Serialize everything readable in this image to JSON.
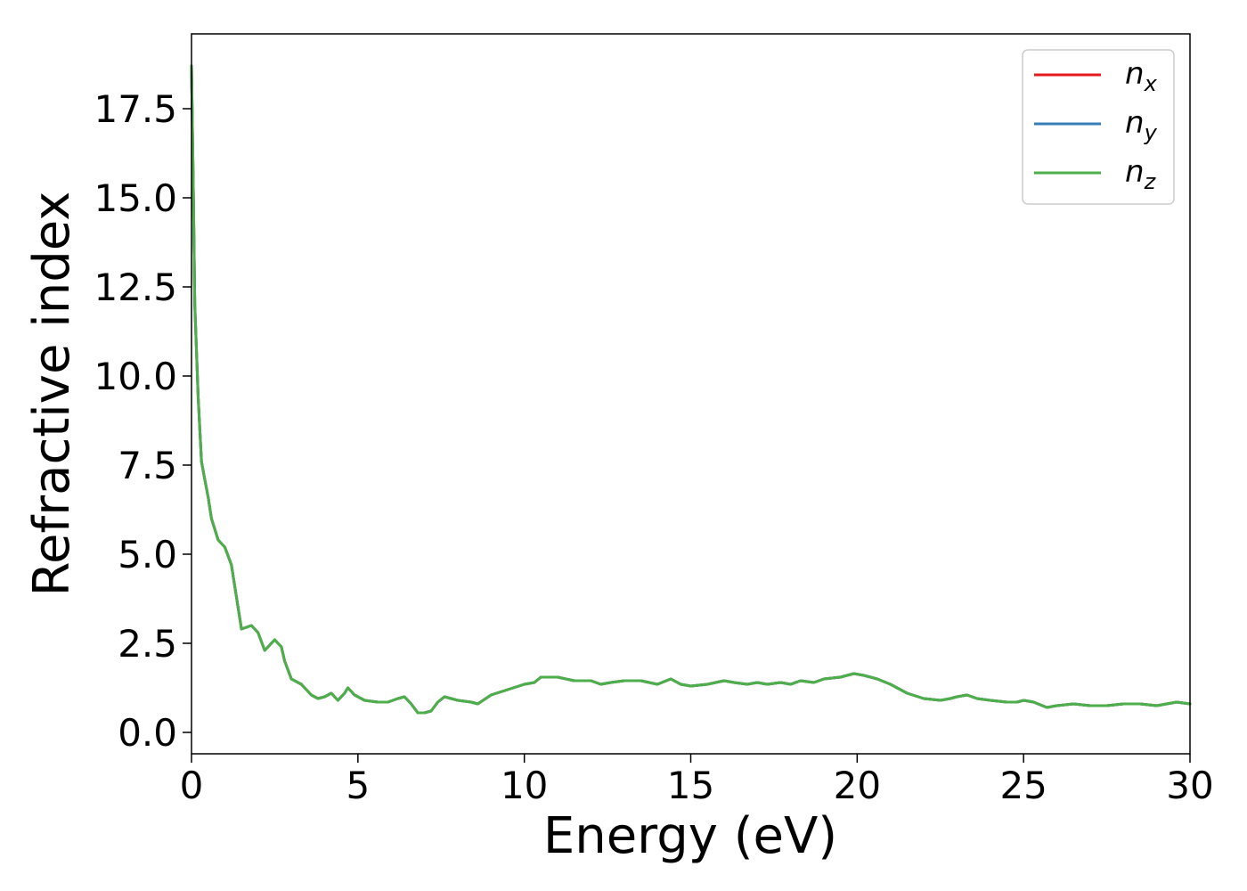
{
  "chart_data": {
    "type": "line",
    "xlabel": "Energy (eV)",
    "ylabel": "Refractive index",
    "xlim": [
      0,
      30
    ],
    "ylim": [
      -0.6,
      19.6
    ],
    "xticks": [
      0,
      5,
      10,
      15,
      20,
      25,
      30
    ],
    "xtick_labels": [
      "0",
      "5",
      "10",
      "15",
      "20",
      "25",
      "30"
    ],
    "yticks": [
      0.0,
      2.5,
      5.0,
      7.5,
      10.0,
      12.5,
      15.0,
      17.5
    ],
    "ytick_labels": [
      "0.0",
      "2.5",
      "5.0",
      "7.5",
      "10.0",
      "12.5",
      "15.0",
      "17.5"
    ],
    "grid": false,
    "legend_position": "top-right",
    "x": [
      0.0,
      0.05,
      0.1,
      0.2,
      0.3,
      0.4,
      0.5,
      0.6,
      0.8,
      1.0,
      1.2,
      1.5,
      1.8,
      2.0,
      2.2,
      2.3,
      2.5,
      2.7,
      2.8,
      3.0,
      3.3,
      3.6,
      3.8,
      4.0,
      4.2,
      4.4,
      4.6,
      4.7,
      4.9,
      5.2,
      5.6,
      5.9,
      6.2,
      6.4,
      6.6,
      6.8,
      7.0,
      7.2,
      7.4,
      7.6,
      7.8,
      8.0,
      8.4,
      8.6,
      9.0,
      9.5,
      10.0,
      10.3,
      10.5,
      11.0,
      11.5,
      12.0,
      12.3,
      12.6,
      13.0,
      13.5,
      14.0,
      14.4,
      14.7,
      15.0,
      15.5,
      16.0,
      16.3,
      16.7,
      17.0,
      17.3,
      17.7,
      18.0,
      18.3,
      18.7,
      19.0,
      19.5,
      19.9,
      20.2,
      20.6,
      21.0,
      21.5,
      22.0,
      22.5,
      22.8,
      23.0,
      23.3,
      23.6,
      24.0,
      24.5,
      24.8,
      25.0,
      25.3,
      25.7,
      26.0,
      26.5,
      27.0,
      27.5,
      28.0,
      28.5,
      29.0,
      29.3,
      29.6,
      30.0
    ],
    "series": [
      {
        "name": "x",
        "color": "#e41a1c",
        "values": [
          18.7,
          15.5,
          12.0,
          9.4,
          7.6,
          7.1,
          6.6,
          6.0,
          5.4,
          5.2,
          4.7,
          2.9,
          3.0,
          2.8,
          2.3,
          2.4,
          2.6,
          2.4,
          2.0,
          1.5,
          1.35,
          1.05,
          0.95,
          1.0,
          1.1,
          0.9,
          1.1,
          1.25,
          1.05,
          0.9,
          0.85,
          0.85,
          0.95,
          1.0,
          0.8,
          0.55,
          0.55,
          0.6,
          0.85,
          1.0,
          0.95,
          0.9,
          0.85,
          0.8,
          1.05,
          1.2,
          1.35,
          1.4,
          1.55,
          1.55,
          1.45,
          1.45,
          1.35,
          1.4,
          1.45,
          1.45,
          1.35,
          1.5,
          1.35,
          1.3,
          1.35,
          1.45,
          1.4,
          1.35,
          1.4,
          1.35,
          1.4,
          1.35,
          1.45,
          1.4,
          1.5,
          1.55,
          1.65,
          1.6,
          1.5,
          1.35,
          1.1,
          0.95,
          0.9,
          0.95,
          1.0,
          1.05,
          0.95,
          0.9,
          0.85,
          0.85,
          0.9,
          0.85,
          0.7,
          0.75,
          0.8,
          0.75,
          0.75,
          0.8,
          0.8,
          0.75,
          0.8,
          0.85,
          0.8
        ]
      },
      {
        "name": "y",
        "color": "#377eb8",
        "values": [
          18.7,
          15.5,
          12.0,
          9.4,
          7.6,
          7.1,
          6.6,
          6.0,
          5.4,
          5.2,
          4.7,
          2.9,
          3.0,
          2.8,
          2.3,
          2.4,
          2.6,
          2.4,
          2.0,
          1.5,
          1.35,
          1.05,
          0.95,
          1.0,
          1.1,
          0.9,
          1.1,
          1.25,
          1.05,
          0.9,
          0.85,
          0.85,
          0.95,
          1.0,
          0.8,
          0.55,
          0.55,
          0.6,
          0.85,
          1.0,
          0.95,
          0.9,
          0.85,
          0.8,
          1.05,
          1.2,
          1.35,
          1.4,
          1.55,
          1.55,
          1.45,
          1.45,
          1.35,
          1.4,
          1.45,
          1.45,
          1.35,
          1.5,
          1.35,
          1.3,
          1.35,
          1.45,
          1.4,
          1.35,
          1.4,
          1.35,
          1.4,
          1.35,
          1.45,
          1.4,
          1.5,
          1.55,
          1.65,
          1.6,
          1.5,
          1.35,
          1.1,
          0.95,
          0.9,
          0.95,
          1.0,
          1.05,
          0.95,
          0.9,
          0.85,
          0.85,
          0.9,
          0.85,
          0.7,
          0.75,
          0.8,
          0.75,
          0.75,
          0.8,
          0.8,
          0.75,
          0.8,
          0.85,
          0.8
        ]
      },
      {
        "name": "z",
        "color": "#4daf4a",
        "values": [
          18.7,
          15.5,
          12.0,
          9.4,
          7.6,
          7.1,
          6.6,
          6.0,
          5.4,
          5.2,
          4.7,
          2.9,
          3.0,
          2.8,
          2.3,
          2.4,
          2.6,
          2.4,
          2.0,
          1.5,
          1.35,
          1.05,
          0.95,
          1.0,
          1.1,
          0.9,
          1.1,
          1.25,
          1.05,
          0.9,
          0.85,
          0.85,
          0.95,
          1.0,
          0.8,
          0.55,
          0.55,
          0.6,
          0.85,
          1.0,
          0.95,
          0.9,
          0.85,
          0.8,
          1.05,
          1.2,
          1.35,
          1.4,
          1.55,
          1.55,
          1.45,
          1.45,
          1.35,
          1.4,
          1.45,
          1.45,
          1.35,
          1.5,
          1.35,
          1.3,
          1.35,
          1.45,
          1.4,
          1.35,
          1.4,
          1.35,
          1.4,
          1.35,
          1.45,
          1.4,
          1.5,
          1.55,
          1.65,
          1.6,
          1.5,
          1.35,
          1.1,
          0.95,
          0.9,
          0.95,
          1.0,
          1.05,
          0.95,
          0.9,
          0.85,
          0.85,
          0.9,
          0.85,
          0.7,
          0.75,
          0.8,
          0.75,
          0.75,
          0.8,
          0.8,
          0.75,
          0.8,
          0.85,
          0.8
        ]
      }
    ],
    "legend_entries": [
      {
        "symbol": "n",
        "subscript": "x",
        "color": "#e41a1c"
      },
      {
        "symbol": "n",
        "subscript": "y",
        "color": "#377eb8"
      },
      {
        "symbol": "n",
        "subscript": "z",
        "color": "#4daf4a"
      }
    ]
  }
}
